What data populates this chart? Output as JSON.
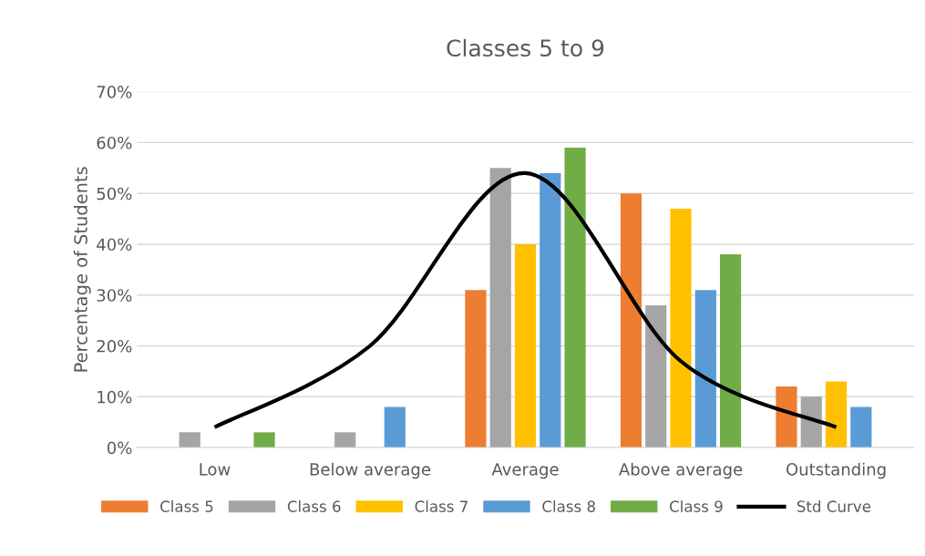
{
  "chart_data": {
    "type": "bar",
    "title": "Classes 5 to 9",
    "ylabel": "Percentage of Students",
    "categories": [
      "Low",
      "Below average",
      "Average",
      "Above average",
      "Outstanding"
    ],
    "series": [
      {
        "name": "Class 5",
        "color": "#ed7d31",
        "values": [
          0,
          0,
          31,
          50,
          12
        ]
      },
      {
        "name": "Class 6",
        "color": "#a5a5a5",
        "values": [
          3,
          3,
          55,
          28,
          10
        ]
      },
      {
        "name": "Class 7",
        "color": "#ffc000",
        "values": [
          0,
          0,
          40,
          47,
          13
        ]
      },
      {
        "name": "Class 8",
        "color": "#5b9bd5",
        "values": [
          0,
          8,
          54,
          31,
          8
        ]
      },
      {
        "name": "Class 9",
        "color": "#70ad47",
        "values": [
          3,
          0,
          59,
          38,
          0
        ]
      },
      {
        "name": "Std Curve",
        "type": "line",
        "color": "#000000",
        "values": [
          4,
          20,
          54,
          17,
          4
        ]
      }
    ],
    "ylim": [
      0,
      70
    ],
    "yticks": [
      {
        "value": 0,
        "label": "0%"
      },
      {
        "value": 10,
        "label": "10%"
      },
      {
        "value": 20,
        "label": "20%"
      },
      {
        "value": 30,
        "label": "30%"
      },
      {
        "value": 40,
        "label": "40%"
      },
      {
        "value": 50,
        "label": "50%"
      },
      {
        "value": 60,
        "label": "60%"
      },
      {
        "value": 70,
        "label": "70%"
      }
    ],
    "grid": "y",
    "legend": "bottom",
    "line_style": "solid",
    "marker": "none"
  }
}
